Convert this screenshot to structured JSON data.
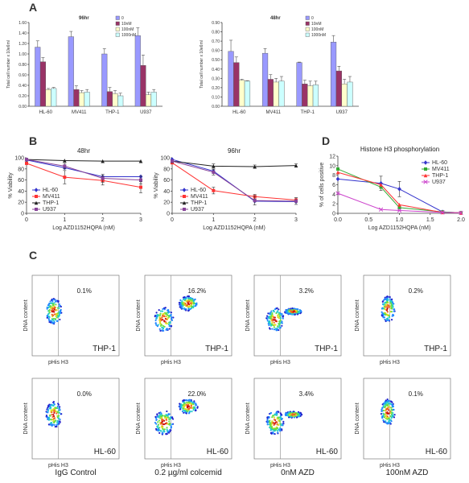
{
  "section_labels": [
    "A",
    "B",
    "C",
    "D"
  ],
  "chart_data": [
    {
      "id": "A1",
      "type": "bar",
      "title": "96hr",
      "ylabel": "Total cell number x 10e6ml",
      "categories": [
        "HL-60",
        "MV411",
        "THP-1",
        "U937"
      ],
      "ylim": [
        0,
        1.6
      ],
      "yticks": [
        "0.00",
        "0.20",
        "0.40",
        "0.60",
        "0.80",
        "1.00",
        "1.20",
        "1.40",
        "1.60"
      ],
      "series": [
        {
          "name": "0",
          "color": "#9999ff",
          "values": [
            1.13,
            1.33,
            1.0,
            1.35
          ],
          "err": [
            0.12,
            0.1,
            0.1,
            0.15
          ]
        },
        {
          "name": "10nM",
          "color": "#993366",
          "values": [
            0.85,
            0.32,
            0.28,
            0.78
          ],
          "err": [
            0.08,
            0.07,
            0.08,
            0.2
          ]
        },
        {
          "name": "100nM",
          "color": "#ffffcc",
          "values": [
            0.32,
            0.26,
            0.24,
            0.22
          ],
          "err": [
            0.02,
            0.04,
            0.06,
            0.05
          ]
        },
        {
          "name": "1000nM",
          "color": "#ccffff",
          "values": [
            0.34,
            0.27,
            0.2,
            0.27
          ],
          "err": [
            0.02,
            0.05,
            0.05,
            0.05
          ]
        }
      ]
    },
    {
      "id": "A2",
      "type": "bar",
      "title": "48hr",
      "ylabel": "Total cell number x 10e6ml",
      "categories": [
        "HL-60",
        "MV411",
        "THP-1",
        "U937"
      ],
      "ylim": [
        0,
        0.9
      ],
      "yticks": [
        "0.00",
        "0.10",
        "0.20",
        "0.30",
        "0.40",
        "0.50",
        "0.60",
        "0.70",
        "0.80",
        "0.90"
      ],
      "series": [
        {
          "name": "0",
          "color": "#9999ff",
          "values": [
            0.59,
            0.57,
            0.47,
            0.69
          ],
          "err": [
            0.12,
            0.05,
            0.005,
            0.07
          ]
        },
        {
          "name": "10nM",
          "color": "#993366",
          "values": [
            0.47,
            0.29,
            0.24,
            0.38
          ],
          "err": [
            0.06,
            0.05,
            0.04,
            0.05
          ]
        },
        {
          "name": "100nM",
          "color": "#ffffcc",
          "values": [
            0.28,
            0.26,
            0.22,
            0.24
          ],
          "err": [
            0.01,
            0.04,
            0.05,
            0.05
          ]
        },
        {
          "name": "1000nM",
          "color": "#ccffff",
          "values": [
            0.27,
            0.27,
            0.23,
            0.26
          ],
          "err": [
            0.005,
            0.05,
            0.04,
            0.06
          ]
        }
      ]
    },
    {
      "id": "B1",
      "type": "line",
      "title": "48hr",
      "xlabel": "Log AZD1152HQPA (nM)",
      "ylabel": "% Viability",
      "xlim": [
        0,
        3
      ],
      "ylim": [
        0,
        100
      ],
      "xticks": [
        "0",
        "1",
        "2",
        "3"
      ],
      "yticks": [
        "0",
        "20",
        "40",
        "60",
        "80",
        "100"
      ],
      "x": [
        0,
        1,
        2,
        3
      ],
      "series": [
        {
          "name": "HL-60",
          "color": "#3333cc",
          "marker": "diamond",
          "values": [
            96,
            82,
            66,
            66
          ]
        },
        {
          "name": "MV411",
          "color": "#ff3333",
          "marker": "square",
          "values": [
            90,
            65,
            59,
            47
          ],
          "err": [
            2,
            12,
            8,
            10
          ]
        },
        {
          "name": "THP-1",
          "color": "#222222",
          "marker": "triangle",
          "values": [
            97,
            95,
            94,
            94
          ]
        },
        {
          "name": "U937",
          "color": "#884499",
          "marker": "square",
          "values": [
            97,
            85,
            63,
            60
          ],
          "err": [
            2,
            5,
            7,
            7
          ]
        }
      ]
    },
    {
      "id": "B2",
      "type": "line",
      "title": "96hr",
      "xlabel": "Log AZD1152HQPA (nM)",
      "ylabel": "% Viability",
      "xlim": [
        0,
        3
      ],
      "ylim": [
        0,
        100
      ],
      "xticks": [
        "0",
        "1",
        "2",
        "3"
      ],
      "yticks": [
        "0",
        "20",
        "40",
        "60",
        "80",
        "100"
      ],
      "x": [
        0,
        1,
        2,
        3
      ],
      "series": [
        {
          "name": "HL-60",
          "color": "#3333cc",
          "marker": "diamond",
          "values": [
            97,
            76,
            22,
            21
          ]
        },
        {
          "name": "MV411",
          "color": "#ff3333",
          "marker": "square",
          "values": [
            91,
            41,
            30,
            24
          ],
          "err": [
            2,
            6,
            4,
            4
          ]
        },
        {
          "name": "THP-1",
          "color": "#222222",
          "marker": "triangle",
          "values": [
            94,
            85,
            84,
            86
          ],
          "err": [
            2,
            4,
            3,
            3
          ]
        },
        {
          "name": "U937",
          "color": "#884499",
          "marker": "square",
          "values": [
            94,
            74,
            23,
            22
          ],
          "err": [
            2,
            5,
            8,
            6
          ]
        }
      ]
    },
    {
      "id": "D",
      "type": "line",
      "title": "Histone H3 phosphorylation",
      "xlabel": "Log AZD1152HQPA (nM)",
      "ylabel": "% of cells positive",
      "xlim": [
        0,
        2
      ],
      "ylim": [
        0,
        12
      ],
      "xticks": [
        "0.0",
        "0.5",
        "1.0",
        "1.5",
        "2.0"
      ],
      "yticks": [
        "0",
        "2",
        "4",
        "6",
        "8",
        "10",
        "12"
      ],
      "x": [
        0,
        0.7,
        1,
        1.7,
        2
      ],
      "series": [
        {
          "name": "HL-60",
          "color": "#3333cc",
          "marker": "diamond",
          "values": [
            7.2,
            6.3,
            5.1,
            0.3,
            0.1
          ],
          "err": [
            0,
            1.5,
            1.6,
            0,
            0
          ]
        },
        {
          "name": "MV411",
          "color": "#33aa33",
          "marker": "square",
          "values": [
            9.3,
            5.5,
            1.2,
            0.3,
            0.1
          ]
        },
        {
          "name": "THP-1",
          "color": "#ff3333",
          "marker": "triangle",
          "values": [
            8.6,
            6.0,
            1.8,
            0.2,
            0.1
          ]
        },
        {
          "name": "U937",
          "color": "#cc44cc",
          "marker": "x",
          "values": [
            4.2,
            0.8,
            0.6,
            0.2,
            0.1
          ]
        }
      ]
    }
  ],
  "flow": {
    "ylabel": "DNA content",
    "xlabel": "pHis H3",
    "cols": [
      "IgG Control",
      "0.2 µg/ml colcemid",
      "0nM AZD",
      "100nM AZD"
    ],
    "rows": [
      {
        "cell": "THP-1",
        "pct": [
          "0.1%",
          "16.2%",
          "3.2%",
          "0.2%"
        ]
      },
      {
        "cell": "HL-60",
        "pct": [
          "0.0%",
          "22.0%",
          "3.4%",
          "0.1%"
        ]
      }
    ]
  }
}
